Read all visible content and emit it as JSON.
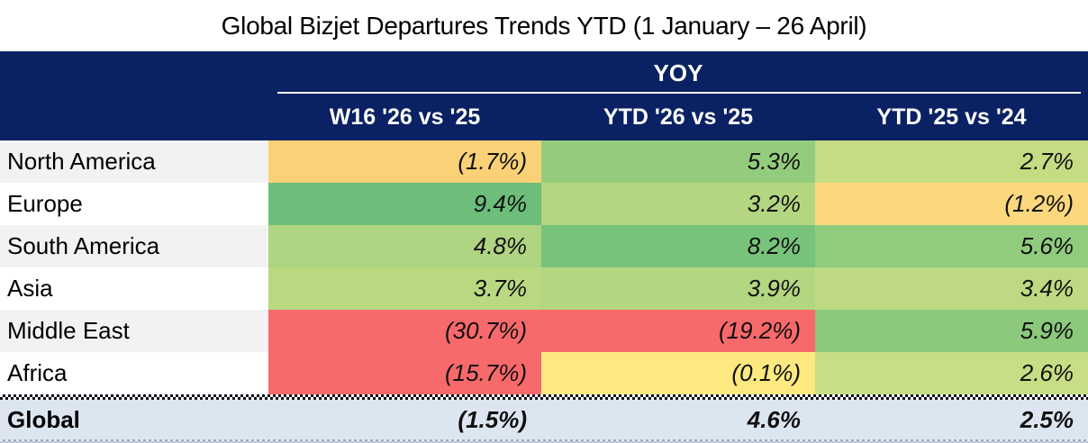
{
  "title": "Global Bizjet Departures Trends YTD (1 January – 26 April)",
  "table": {
    "group_header": "YOY",
    "columns": [
      "W16 '26 vs '25",
      "YTD '26 vs '25",
      "YTD '25 vs '24"
    ],
    "rows": [
      {
        "region": "North America",
        "values": [
          "(1.7%)",
          "5.3%",
          "2.7%"
        ],
        "colors": [
          "#FAD176",
          "#94CC7D",
          "#C5DC83"
        ]
      },
      {
        "region": "Europe",
        "values": [
          "9.4%",
          "3.2%",
          "(1.2%)"
        ],
        "colors": [
          "#6CBE7A",
          "#B4D681",
          "#FBD77E"
        ]
      },
      {
        "region": "South America",
        "values": [
          "4.8%",
          "8.2%",
          "5.6%"
        ],
        "colors": [
          "#AFD482",
          "#78C37B",
          "#90CB7E"
        ]
      },
      {
        "region": "Asia",
        "values": [
          "3.7%",
          "3.9%",
          "3.4%"
        ],
        "colors": [
          "#B9D981",
          "#B3D680",
          "#BDDA82"
        ]
      },
      {
        "region": "Middle East",
        "values": [
          "(30.7%)",
          "(19.2%)",
          "5.9%"
        ],
        "colors": [
          "#F8696B",
          "#F8696B",
          "#8BC97D"
        ]
      },
      {
        "region": "Africa",
        "values": [
          "(15.7%)",
          "(0.1%)",
          "2.6%"
        ],
        "colors": [
          "#F8696B",
          "#FDE97F",
          "#C8DE84"
        ]
      }
    ],
    "total_row": {
      "region": "Global",
      "values": [
        "(1.5%)",
        "4.6%",
        "2.5%"
      ]
    }
  },
  "palette": {
    "header_navy": "#0A2163",
    "header_text": "#FFFFFF",
    "label_alt_gray": "#F2F2F2",
    "total_row_blue": "#DCE6F1",
    "scale_red": "#F8696B",
    "scale_yellow": "#FDE97F",
    "scale_green": "#6CBE7A"
  },
  "chart_data": {
    "type": "heatmap",
    "title": "Global Bizjet Departures Trends YTD (1 January – 26 April)",
    "group_header": "YOY",
    "columns": [
      "W16 '26 vs '25",
      "YTD '26 vs '25",
      "YTD '25 vs '24"
    ],
    "rows": [
      "North America",
      "Europe",
      "South America",
      "Asia",
      "Middle East",
      "Africa",
      "Global"
    ],
    "values_pct": [
      [
        -1.7,
        5.3,
        2.7
      ],
      [
        9.4,
        3.2,
        -1.2
      ],
      [
        4.8,
        8.2,
        5.6
      ],
      [
        3.7,
        3.9,
        3.4
      ],
      [
        -30.7,
        -19.2,
        5.9
      ],
      [
        -15.7,
        -0.1,
        2.6
      ],
      [
        -1.5,
        4.6,
        2.5
      ]
    ],
    "notes": "Negative values shown in parentheses; cells colored red–yellow–green by value; Global total row on light blue"
  }
}
